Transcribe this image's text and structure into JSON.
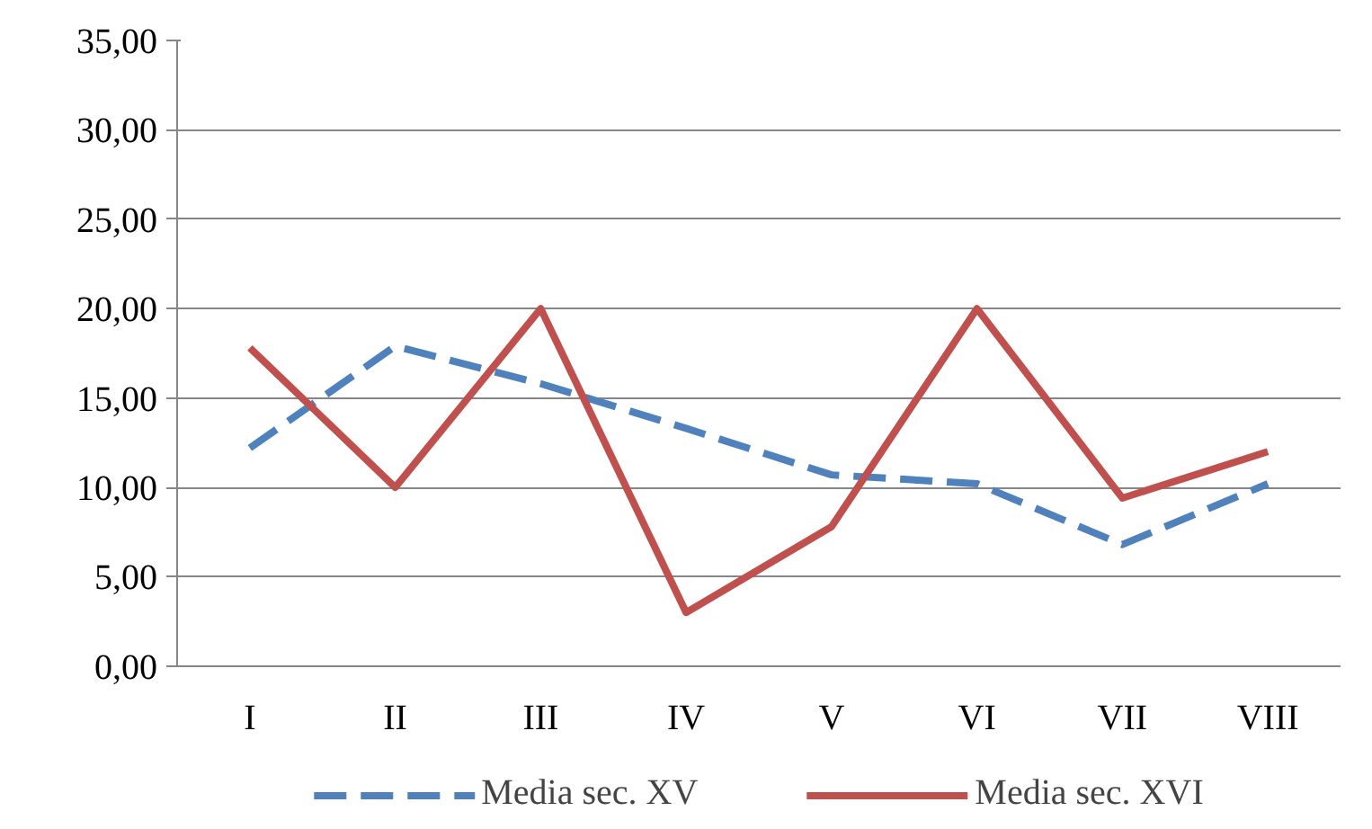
{
  "chart_data": {
    "type": "line",
    "categories": [
      "I",
      "II",
      "III",
      "IV",
      "V",
      "VI",
      "VII",
      "VIII"
    ],
    "series": [
      {
        "name": "Media sec. XV",
        "color": "#4f81bd",
        "line_style": "dashed",
        "values": [
          12.2,
          17.9,
          15.8,
          13.3,
          10.7,
          10.2,
          6.8,
          10.2
        ]
      },
      {
        "name": "Media sec. XVI",
        "color": "#c0504d",
        "line_style": "solid",
        "values": [
          17.8,
          10.0,
          20.0,
          3.0,
          7.8,
          20.0,
          9.4,
          12.0
        ]
      }
    ],
    "ylim": [
      0,
      35
    ],
    "yticks": [
      {
        "value": 0,
        "label": "0,00"
      },
      {
        "value": 5,
        "label": "5,00"
      },
      {
        "value": 10,
        "label": "10,00"
      },
      {
        "value": 15,
        "label": "15,00"
      },
      {
        "value": 20,
        "label": "20,00"
      },
      {
        "value": 25,
        "label": "25,00"
      },
      {
        "value": 30,
        "label": "30,00"
      },
      {
        "value": 35,
        "label": "35,00"
      }
    ],
    "grid": "y",
    "legend": "bottom",
    "marker": "none"
  }
}
